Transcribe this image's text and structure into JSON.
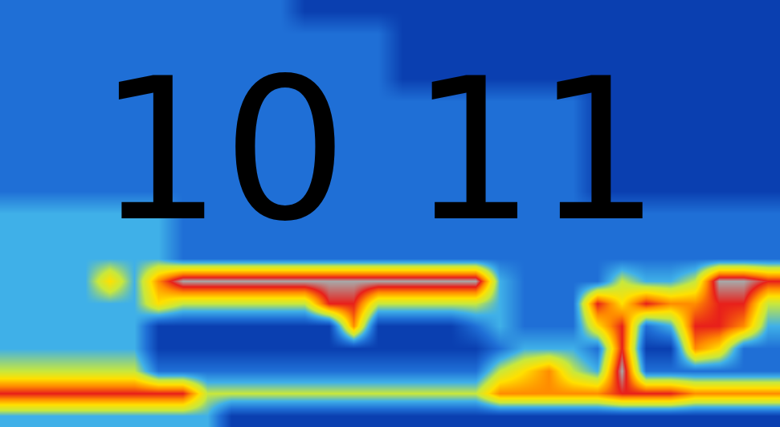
{
  "chart_data": {
    "type": "heatmap",
    "annotations": [
      "10 11"
    ],
    "tick_labels": false,
    "zlim": [
      0,
      10
    ],
    "z": [
      [
        3,
        3,
        3,
        3,
        3,
        3,
        3,
        3,
        3,
        3,
        3,
        3,
        2,
        2,
        2,
        2,
        2,
        2,
        2,
        2,
        2,
        2,
        2,
        2,
        2,
        2,
        2,
        2,
        2,
        2,
        2,
        2
      ],
      [
        3,
        3,
        3,
        3,
        3,
        3,
        3,
        3,
        3,
        3,
        3,
        3,
        3,
        3,
        3,
        3,
        2,
        2,
        2,
        2,
        2,
        2,
        2,
        2,
        2,
        2,
        2,
        2,
        2,
        2,
        2,
        2
      ],
      [
        3,
        3,
        3,
        3,
        3,
        3,
        3,
        3,
        3,
        3,
        3,
        3,
        3,
        3,
        3,
        3,
        2,
        2,
        2,
        2,
        2,
        2,
        2,
        2,
        2,
        2,
        2,
        2,
        2,
        2,
        2,
        2
      ],
      [
        3,
        3,
        3,
        3,
        3,
        3,
        3,
        3,
        3,
        3,
        3,
        3,
        3,
        3,
        3,
        3,
        2,
        2,
        2,
        2,
        2,
        2,
        2,
        2,
        2,
        2,
        2,
        2,
        2,
        2,
        2,
        2
      ],
      [
        3,
        3,
        3,
        3,
        3,
        3,
        3,
        3,
        3,
        3,
        3,
        3,
        3,
        3,
        3,
        3,
        3,
        3,
        3,
        3,
        3,
        3,
        3,
        3,
        2,
        2,
        2,
        2,
        2,
        2,
        2,
        2
      ],
      [
        3,
        3,
        3,
        3,
        3,
        3,
        3,
        3,
        3,
        3,
        3,
        3,
        3,
        3,
        3,
        3,
        3,
        3,
        3,
        3,
        3,
        3,
        3,
        3,
        2,
        2,
        2,
        2,
        2,
        2,
        2,
        2
      ],
      [
        3,
        3,
        3,
        3,
        3,
        3,
        3,
        3,
        3,
        3,
        3,
        3,
        3,
        3,
        3,
        3,
        3,
        3,
        3,
        3,
        3,
        3,
        3,
        3,
        2,
        2,
        2,
        2,
        2,
        2,
        2,
        2
      ],
      [
        3,
        3,
        3,
        3,
        3,
        3,
        3,
        3,
        3,
        3,
        3,
        3,
        3,
        3,
        3,
        3,
        3,
        3,
        3,
        3,
        3,
        3,
        3,
        3,
        2,
        2,
        2,
        2,
        2,
        2,
        2,
        2
      ],
      [
        3,
        3,
        3,
        3,
        3,
        3,
        3,
        3,
        3,
        3,
        3,
        3,
        3,
        3,
        3,
        3,
        3,
        3,
        3,
        3,
        3,
        3,
        3,
        3,
        2,
        2,
        2,
        2,
        2,
        2,
        2,
        2
      ],
      [
        4,
        4,
        4,
        4,
        4,
        4,
        4,
        3,
        3,
        3,
        3,
        3,
        3,
        3,
        3,
        3,
        3,
        3,
        3,
        3,
        3,
        3,
        3,
        3,
        3,
        3,
        3,
        3,
        3,
        3,
        3,
        3
      ],
      [
        4,
        4,
        4,
        4,
        4,
        4,
        4,
        3,
        3,
        3,
        3,
        3,
        3,
        3,
        3,
        3,
        3,
        3,
        3,
        3,
        3,
        3,
        3,
        3,
        3,
        3,
        3,
        3,
        3,
        3,
        3,
        3
      ],
      [
        4,
        4,
        4,
        4,
        4,
        4,
        4,
        3,
        3,
        3,
        3,
        3,
        3,
        3,
        3,
        3,
        3,
        3,
        3,
        3,
        3,
        3,
        3,
        3,
        3,
        3,
        3,
        3,
        3,
        3,
        3,
        3
      ],
      [
        4,
        4,
        4,
        4,
        6,
        4,
        7,
        9,
        9,
        9,
        9,
        9,
        9,
        9,
        9,
        9,
        9,
        9,
        9,
        9,
        4,
        3,
        3,
        3,
        3,
        5,
        4,
        4,
        5,
        9,
        9,
        8
      ],
      [
        4,
        4,
        4,
        4,
        4,
        4,
        6,
        5,
        5,
        5,
        5,
        5,
        5,
        8,
        8,
        5,
        5,
        5,
        5,
        5,
        4,
        3,
        3,
        3,
        8,
        6,
        8,
        7,
        7,
        8,
        8,
        5
      ],
      [
        4,
        4,
        4,
        4,
        4,
        4,
        2,
        2,
        2,
        2,
        2,
        2,
        2,
        2,
        7,
        2,
        2,
        2,
        2,
        3,
        4,
        3,
        3,
        3,
        6,
        8,
        3,
        4,
        8,
        8,
        7,
        4
      ],
      [
        4,
        4,
        4,
        4,
        4,
        4,
        2,
        2,
        2,
        2,
        2,
        2,
        2,
        2,
        2,
        2,
        2,
        2,
        2,
        2,
        3,
        4,
        4,
        4,
        3,
        8,
        2,
        2,
        7,
        6,
        3,
        3
      ],
      [
        5,
        5,
        5,
        5,
        5,
        5,
        3,
        3,
        3,
        3,
        3,
        3,
        3,
        3,
        3,
        3,
        3,
        3,
        3,
        3,
        5,
        6,
        7,
        5,
        4,
        9,
        3,
        3,
        3,
        3,
        3,
        3
      ],
      [
        8,
        8,
        8,
        8,
        8,
        8,
        8,
        8,
        5,
        5,
        5,
        5,
        5,
        5,
        5,
        5,
        5,
        5,
        5,
        5,
        7,
        7,
        7,
        7,
        7,
        8,
        8,
        8,
        7,
        7,
        7,
        7
      ],
      [
        4,
        4,
        4,
        4,
        4,
        4,
        4,
        4,
        4,
        2,
        2,
        2,
        2,
        2,
        2,
        2,
        2,
        2,
        2,
        2,
        2,
        2,
        2,
        2,
        2,
        2,
        2,
        2,
        2,
        2,
        2,
        2
      ]
    ]
  }
}
